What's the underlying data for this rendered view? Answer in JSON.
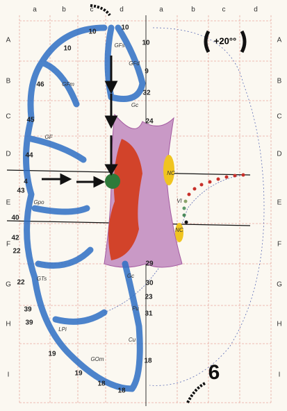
{
  "header": {
    "badge": "+20°°"
  },
  "grid": {
    "columns": [
      "a",
      "b",
      "c",
      "d",
      "a",
      "b",
      "c",
      "d"
    ],
    "rows": [
      "A",
      "B",
      "C",
      "D",
      "E",
      "F",
      "G",
      "H",
      "I"
    ]
  },
  "numbers": [
    "10",
    "10",
    "10",
    "10",
    "9",
    "46",
    "32",
    "45",
    "24",
    "44",
    "4",
    "43",
    "40",
    "42",
    "22",
    "29",
    "22",
    "30",
    "23",
    "39",
    "31",
    "39",
    "19",
    "18",
    "19",
    "18",
    "18"
  ],
  "structures": [
    "GFs",
    "GFd",
    "GFm",
    "Gc",
    "GF",
    "Gpo",
    "NC",
    "VI",
    "NC",
    "GTs",
    "Gc",
    "Pu",
    "LPi",
    "Cu",
    "GOm"
  ],
  "figure_number": "6"
}
